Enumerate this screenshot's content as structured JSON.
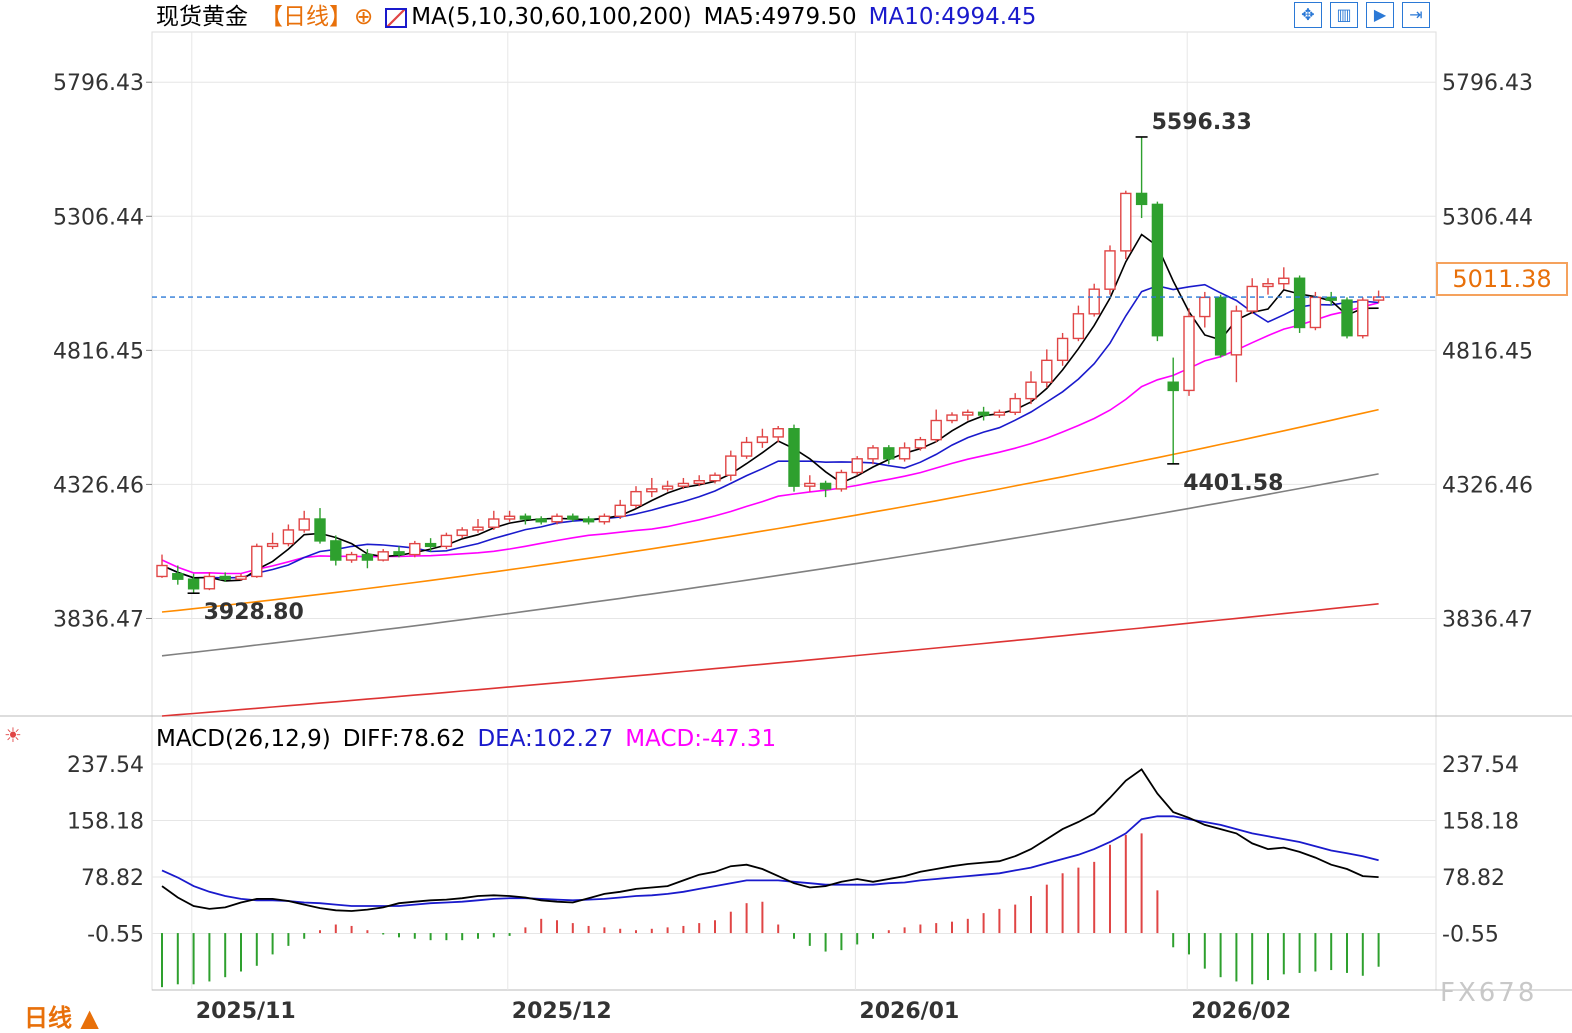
{
  "header": {
    "instrument": "现货黄金",
    "period_label": "【日线】",
    "plus_icon": "⊕",
    "ma_label": "MA(5,10,30,60,100,200)",
    "ma5": "MA5:4979.50",
    "ma10": "MA10:4994.45"
  },
  "macd_header": {
    "title": "MACD(26,12,9)",
    "diff": "DIFF:78.62",
    "dea": "DEA:102.27",
    "macd": "MACD:-47.31"
  },
  "toolbar": {
    "zoom_icon": "crosshair-grid-icon",
    "candle_icon": "candle-toggle-icon",
    "play_icon": "play-icon",
    "end_icon": "jump-end-icon"
  },
  "period_button": "日线 ▲",
  "watermark": "FX678",
  "current_price_tag": "5011.38",
  "colors": {
    "up": "#e04545",
    "down": "#2ea02e",
    "ma5": "#000000",
    "ma10": "#1a1acc",
    "ma30": "#ff00ff",
    "ma60": "#ff8c00",
    "ma100": "#808080",
    "ma200": "#dd3333",
    "dashed": "#2b79d6"
  },
  "chart_data": [
    {
      "type": "candlestick",
      "title": "现货黄金 日线",
      "y_ticks": [
        "5796.43",
        "5306.44",
        "4816.45",
        "4326.46",
        "3836.47"
      ],
      "ylim": [
        3480,
        5980
      ],
      "x_labels": [
        "2025/11",
        "2025/12",
        "2026/01",
        "2026/02"
      ],
      "x_label_index": [
        1,
        21,
        43,
        64
      ],
      "current_price": 5011.38,
      "annotations": [
        {
          "text": "5596.33",
          "index": 62,
          "value": 5596.33,
          "kind": "high"
        },
        {
          "text": "4401.58",
          "index": 64,
          "value": 4401.58,
          "kind": "low"
        },
        {
          "text": "3928.80",
          "index": 2,
          "value": 3928.8,
          "kind": "low"
        }
      ],
      "candles": [
        [
          3990,
          4030,
          3985,
          4070
        ],
        [
          4000,
          3980,
          3960,
          4030
        ],
        [
          3980,
          3945,
          3928.8,
          4000
        ],
        [
          3945,
          3990,
          3940,
          4005
        ],
        [
          3990,
          3980,
          3970,
          4005
        ],
        [
          3980,
          3990,
          3975,
          4000
        ],
        [
          3990,
          4100,
          3985,
          4110
        ],
        [
          4100,
          4110,
          4090,
          4150
        ],
        [
          4110,
          4160,
          4100,
          4180
        ],
        [
          4160,
          4200,
          4150,
          4230
        ],
        [
          4200,
          4120,
          4110,
          4240
        ],
        [
          4120,
          4050,
          4030,
          4140
        ],
        [
          4050,
          4070,
          4040,
          4080
        ],
        [
          4070,
          4050,
          4020,
          4090
        ],
        [
          4050,
          4080,
          4045,
          4090
        ],
        [
          4080,
          4070,
          4060,
          4100
        ],
        [
          4070,
          4110,
          4060,
          4120
        ],
        [
          4110,
          4100,
          4080,
          4130
        ],
        [
          4100,
          4140,
          4090,
          4150
        ],
        [
          4140,
          4160,
          4130,
          4170
        ],
        [
          4160,
          4170,
          4150,
          4200
        ],
        [
          4170,
          4200,
          4160,
          4230
        ],
        [
          4200,
          4210,
          4190,
          4230
        ],
        [
          4210,
          4200,
          4180,
          4220
        ],
        [
          4200,
          4190,
          4180,
          4210
        ],
        [
          4190,
          4210,
          4180,
          4220
        ],
        [
          4210,
          4200,
          4190,
          4220
        ],
        [
          4200,
          4190,
          4180,
          4210
        ],
        [
          4190,
          4210,
          4180,
          4220
        ],
        [
          4210,
          4250,
          4200,
          4270
        ],
        [
          4250,
          4300,
          4240,
          4320
        ],
        [
          4300,
          4310,
          4280,
          4350
        ],
        [
          4310,
          4320,
          4300,
          4340
        ],
        [
          4320,
          4330,
          4310,
          4350
        ],
        [
          4330,
          4340,
          4320,
          4360
        ],
        [
          4340,
          4360,
          4330,
          4370
        ],
        [
          4360,
          4430,
          4340,
          4450
        ],
        [
          4430,
          4480,
          4420,
          4500
        ],
        [
          4480,
          4500,
          4460,
          4530
        ],
        [
          4500,
          4530,
          4480,
          4540
        ],
        [
          4530,
          4320,
          4300,
          4545
        ],
        [
          4320,
          4330,
          4300,
          4360
        ],
        [
          4330,
          4310,
          4280,
          4340
        ],
        [
          4310,
          4370,
          4300,
          4380
        ],
        [
          4370,
          4420,
          4360,
          4430
        ],
        [
          4420,
          4460,
          4400,
          4470
        ],
        [
          4460,
          4420,
          4400,
          4470
        ],
        [
          4420,
          4460,
          4410,
          4480
        ],
        [
          4460,
          4490,
          4450,
          4500
        ],
        [
          4490,
          4560,
          4480,
          4600
        ],
        [
          4560,
          4580,
          4550,
          4590
        ],
        [
          4580,
          4590,
          4560,
          4600
        ],
        [
          4590,
          4580,
          4560,
          4610
        ],
        [
          4580,
          4590,
          4570,
          4600
        ],
        [
          4590,
          4640,
          4580,
          4660
        ],
        [
          4640,
          4700,
          4620,
          4740
        ],
        [
          4700,
          4780,
          4680,
          4820
        ],
        [
          4780,
          4860,
          4760,
          4880
        ],
        [
          4860,
          4950,
          4850,
          4980
        ],
        [
          4950,
          5040,
          4940,
          5060
        ],
        [
          5040,
          5180,
          5020,
          5200
        ],
        [
          5180,
          5390,
          5150,
          5400
        ],
        [
          5390,
          5350,
          5300,
          5596.33
        ],
        [
          5350,
          4870,
          4850,
          5360
        ],
        [
          4700,
          4670,
          4401.58,
          4790
        ],
        [
          4670,
          4940,
          4650,
          4970
        ],
        [
          4940,
          5010,
          4900,
          5030
        ],
        [
          5010,
          4800,
          4790,
          5020
        ],
        [
          4800,
          4960,
          4700,
          4980
        ],
        [
          4960,
          5050,
          4950,
          5080
        ],
        [
          5050,
          5060,
          5020,
          5080
        ],
        [
          5060,
          5080,
          5040,
          5120
        ],
        [
          5080,
          4900,
          4880,
          5090
        ],
        [
          4900,
          5010,
          4890,
          5030
        ],
        [
          5010,
          5000,
          4980,
          5030
        ],
        [
          5000,
          4870,
          4860,
          5010
        ],
        [
          4870,
          5000,
          4860,
          5010
        ],
        [
          5000,
          5011.38,
          4990,
          5035
        ]
      ],
      "ma_series": [
        {
          "name": "MA5",
          "values_start": [
            4035,
            4010
          ]
        },
        {
          "name": "MA10"
        },
        {
          "name": "MA30"
        },
        {
          "name": "MA60"
        },
        {
          "name": "MA100"
        },
        {
          "name": "MA200"
        }
      ]
    },
    {
      "type": "macd",
      "title": "MACD(26,12,9)",
      "y_ticks": [
        "237.54",
        "158.18",
        "78.82",
        "-0.55"
      ],
      "ylim": [
        -80,
        260
      ],
      "diff": [
        66,
        50,
        38,
        34,
        36,
        43,
        48,
        48,
        45,
        40,
        35,
        32,
        31,
        33,
        36,
        42,
        44,
        46,
        47,
        49,
        52,
        53,
        52,
        50,
        46,
        44,
        43,
        49,
        55,
        58,
        62,
        64,
        66,
        74,
        82,
        86,
        94,
        96,
        90,
        80,
        70,
        64,
        66,
        72,
        76,
        72,
        76,
        80,
        86,
        90,
        94,
        97,
        99,
        101,
        108,
        118,
        132,
        146,
        156,
        168,
        190,
        214,
        230,
        196,
        170,
        162,
        152,
        146,
        140,
        126,
        118,
        120,
        114,
        106,
        96,
        90,
        80,
        78.62
      ],
      "dea": [
        88,
        78,
        66,
        58,
        52,
        48,
        46,
        46,
        45,
        43,
        42,
        40,
        38,
        38,
        38,
        38,
        40,
        42,
        43,
        44,
        46,
        48,
        49,
        49,
        48,
        47,
        46,
        47,
        48,
        50,
        52,
        53,
        55,
        58,
        62,
        66,
        70,
        74,
        74,
        74,
        72,
        70,
        68,
        68,
        68,
        68,
        70,
        71,
        74,
        76,
        78,
        80,
        82,
        84,
        88,
        92,
        98,
        104,
        110,
        118,
        128,
        140,
        160,
        164,
        164,
        160,
        156,
        152,
        146,
        140,
        136,
        132,
        128,
        122,
        116,
        112,
        108,
        102.27
      ],
      "bars": [
        -76,
        -72,
        -72,
        -68,
        -62,
        -54,
        -46,
        -30,
        -18,
        -8,
        4,
        12,
        10,
        4,
        -2,
        -6,
        -8,
        -10,
        -10,
        -10,
        -8,
        -6,
        -4,
        8,
        20,
        18,
        14,
        10,
        8,
        6,
        4,
        6,
        8,
        10,
        14,
        18,
        30,
        42,
        44,
        12,
        -8,
        -18,
        -26,
        -24,
        -16,
        -8,
        4,
        8,
        12,
        14,
        16,
        20,
        28,
        34,
        40,
        52,
        68,
        84,
        92,
        100,
        124,
        138,
        140,
        60,
        -20,
        -30,
        -50,
        -62,
        -68,
        -72,
        -66,
        -58,
        -56,
        -54,
        -52,
        -56,
        -60,
        -47.31
      ]
    }
  ]
}
